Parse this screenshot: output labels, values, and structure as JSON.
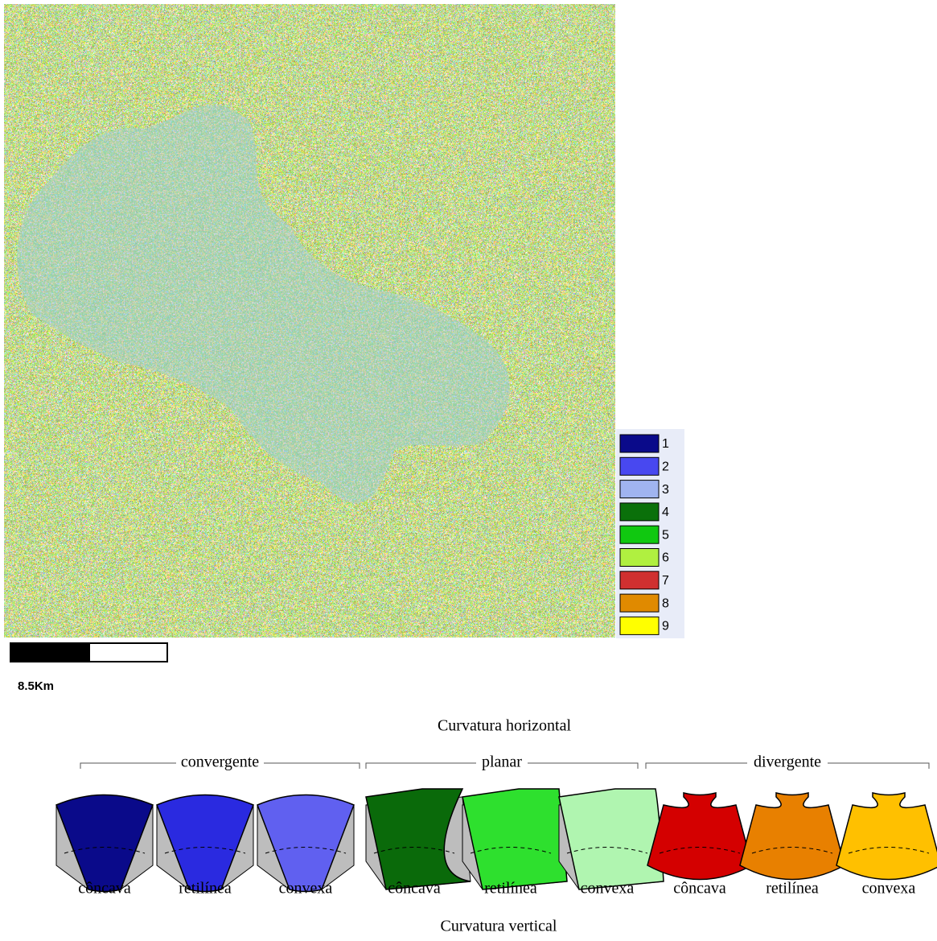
{
  "map": {
    "legend": [
      {
        "label": "1",
        "color": "#0a0a8a"
      },
      {
        "label": "2",
        "color": "#4848f0"
      },
      {
        "label": "3",
        "color": "#a0b4f0"
      },
      {
        "label": "4",
        "color": "#0a700a"
      },
      {
        "label": "5",
        "color": "#10c810"
      },
      {
        "label": "6",
        "color": "#b0f040"
      },
      {
        "label": "7",
        "color": "#d03030"
      },
      {
        "label": "8",
        "color": "#e08a00"
      },
      {
        "label": "9",
        "color": "#ffff00"
      }
    ],
    "scale_label": "8.5Km"
  },
  "diagram": {
    "title_top": "Curvatura horizontal",
    "title_bottom": "Curvatura vertical",
    "groups": [
      {
        "label": "convergente",
        "blocks": [
          {
            "label": "côncava",
            "color": "#0a0a8a"
          },
          {
            "label": "retilínea",
            "color": "#2a2ae0"
          },
          {
            "label": "convexa",
            "color": "#6060f0"
          }
        ]
      },
      {
        "label": "planar",
        "blocks": [
          {
            "label": "côncava",
            "color": "#0a6a0a"
          },
          {
            "label": "retilínea",
            "color": "#2ee02e"
          },
          {
            "label": "convexa",
            "color": "#b0f5b0"
          }
        ]
      },
      {
        "label": "divergente",
        "blocks": [
          {
            "label": "côncava",
            "color": "#d40000"
          },
          {
            "label": "retilínea",
            "color": "#e88000"
          },
          {
            "label": "convexa",
            "color": "#ffc000"
          }
        ]
      }
    ]
  }
}
